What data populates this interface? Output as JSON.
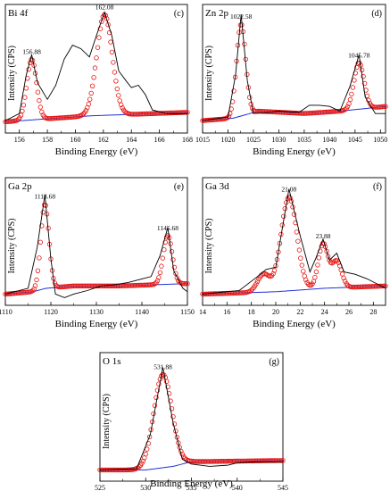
{
  "chart_data": [
    {
      "type": "line",
      "panel": "(c)",
      "element": "Bi 4f",
      "xlabel": "Binding Energy (eV)",
      "ylabel": "Intensity (CPS)",
      "xlim": [
        155,
        168
      ],
      "xticks": [
        156,
        158,
        160,
        162,
        164,
        166,
        168
      ],
      "peaks": [
        {
          "x": 156.88,
          "label": "156.88",
          "height": 0.58,
          "width": 0.35
        },
        {
          "x": 162.08,
          "label": "162.08",
          "height": 0.96,
          "width": 0.55
        }
      ],
      "baseline": [
        [
          155,
          0.05
        ],
        [
          161,
          0.1
        ],
        [
          168,
          0.13
        ]
      ],
      "experimental": [
        [
          155,
          0.06
        ],
        [
          156,
          0.12
        ],
        [
          156.5,
          0.45
        ],
        [
          156.88,
          0.62
        ],
        [
          157.3,
          0.38
        ],
        [
          158,
          0.24
        ],
        [
          158.6,
          0.36
        ],
        [
          159.2,
          0.58
        ],
        [
          159.8,
          0.7
        ],
        [
          160.4,
          0.67
        ],
        [
          161,
          0.6
        ],
        [
          161.5,
          0.78
        ],
        [
          162.08,
          0.98
        ],
        [
          162.6,
          0.78
        ],
        [
          163.1,
          0.48
        ],
        [
          163.6,
          0.4
        ],
        [
          164,
          0.34
        ],
        [
          164.5,
          0.36
        ],
        [
          165,
          0.28
        ],
        [
          165.5,
          0.15
        ],
        [
          166.5,
          0.12
        ],
        [
          168,
          0.12
        ]
      ]
    },
    {
      "type": "line",
      "panel": "(d)",
      "element": "Zn 2p",
      "xlabel": "Binding Energy (eV)",
      "ylabel": "Intensity (CPS)",
      "xlim": [
        1015,
        1051
      ],
      "xticks": [
        1015,
        1020,
        1025,
        1030,
        1035,
        1040,
        1045,
        1050
      ],
      "peaks": [
        {
          "x": 1022.58,
          "label": "1022.58",
          "height": 0.88,
          "width": 0.9
        },
        {
          "x": 1045.78,
          "label": "1045.78",
          "height": 0.55,
          "width": 1.0
        }
      ],
      "baseline": [
        [
          1015,
          0.06
        ],
        [
          1021,
          0.08
        ],
        [
          1026,
          0.14
        ],
        [
          1035,
          0.12
        ],
        [
          1042,
          0.14
        ],
        [
          1051,
          0.18
        ]
      ],
      "experimental": [
        [
          1015,
          0.06
        ],
        [
          1020,
          0.09
        ],
        [
          1021.5,
          0.45
        ],
        [
          1022.58,
          0.96
        ],
        [
          1023.8,
          0.4
        ],
        [
          1025,
          0.12
        ],
        [
          1028,
          0.13
        ],
        [
          1030,
          0.14
        ],
        [
          1034,
          0.13
        ],
        [
          1036,
          0.19
        ],
        [
          1038,
          0.19
        ],
        [
          1040,
          0.18
        ],
        [
          1042,
          0.14
        ],
        [
          1044,
          0.35
        ],
        [
          1045.78,
          0.62
        ],
        [
          1047,
          0.26
        ],
        [
          1049,
          0.12
        ],
        [
          1051,
          0.12
        ]
      ]
    },
    {
      "type": "line",
      "panel": "(e)",
      "element": "Ga 2p",
      "xlabel": "Binding Energy (eV)",
      "ylabel": "Intensity (CPS)",
      "xlim": [
        1110,
        1150
      ],
      "xticks": [
        1110,
        1120,
        1130,
        1140,
        1150
      ],
      "peaks": [
        {
          "x": 1118.68,
          "label": "1118.68",
          "height": 0.82,
          "width": 0.9
        },
        {
          "x": 1145.68,
          "label": "1145.68",
          "height": 0.55,
          "width": 1.0
        }
      ],
      "baseline": [
        [
          1110,
          0.05
        ],
        [
          1116,
          0.07
        ],
        [
          1119,
          0.1
        ],
        [
          1125,
          0.12
        ],
        [
          1135,
          0.12
        ],
        [
          1150,
          0.14
        ]
      ],
      "experimental": [
        [
          1110,
          0.05
        ],
        [
          1115,
          0.1
        ],
        [
          1117,
          0.45
        ],
        [
          1118.68,
          0.9
        ],
        [
          1120,
          0.35
        ],
        [
          1121,
          0.05
        ],
        [
          1123,
          0.02
        ],
        [
          1125,
          0.05
        ],
        [
          1128,
          0.08
        ],
        [
          1131,
          0.12
        ],
        [
          1134,
          0.13
        ],
        [
          1137,
          0.15
        ],
        [
          1140,
          0.18
        ],
        [
          1142,
          0.2
        ],
        [
          1144,
          0.38
        ],
        [
          1145.68,
          0.62
        ],
        [
          1147,
          0.25
        ],
        [
          1149,
          0.1
        ],
        [
          1150,
          0.07
        ]
      ]
    },
    {
      "type": "line",
      "panel": "(f)",
      "element": "Ga 3d",
      "xlabel": "Binding Energy (eV)",
      "ylabel": "Intensity (CPS)",
      "xlim": [
        14,
        29
      ],
      "xticks": [
        14,
        16,
        18,
        20,
        22,
        24,
        26,
        28
      ],
      "peaks": [
        {
          "x": 19.0,
          "label": "",
          "height": 0.22,
          "width": 0.5
        },
        {
          "x": 21.08,
          "label": "21.08",
          "height": 0.88,
          "width": 0.65
        },
        {
          "x": 23.88,
          "label": "23.88",
          "height": 0.48,
          "width": 0.4
        },
        {
          "x": 25.0,
          "label": "",
          "height": 0.33,
          "width": 0.4
        }
      ],
      "baseline": [
        [
          14,
          0.05
        ],
        [
          20,
          0.07
        ],
        [
          24,
          0.1
        ],
        [
          29,
          0.12
        ]
      ],
      "experimental": [
        [
          14,
          0.05
        ],
        [
          17,
          0.08
        ],
        [
          18.5,
          0.2
        ],
        [
          19.2,
          0.26
        ],
        [
          20,
          0.28
        ],
        [
          21.08,
          0.95
        ],
        [
          22,
          0.55
        ],
        [
          22.8,
          0.24
        ],
        [
          23.3,
          0.36
        ],
        [
          23.88,
          0.52
        ],
        [
          24.4,
          0.34
        ],
        [
          25,
          0.4
        ],
        [
          25.6,
          0.24
        ],
        [
          26.5,
          0.22
        ],
        [
          27.5,
          0.18
        ],
        [
          29,
          0.1
        ]
      ]
    },
    {
      "type": "line",
      "panel": "(g)",
      "element": "O 1s",
      "xlabel": "Binding Energy (eV)",
      "ylabel": "Intensity (CPS)",
      "xlim": [
        525,
        545
      ],
      "xticks": [
        525,
        530,
        535,
        540,
        545
      ],
      "peaks": [
        {
          "x": 531.88,
          "label": "531.88",
          "height": 0.86,
          "width": 1.0
        }
      ],
      "baseline": [
        [
          525,
          0.05
        ],
        [
          530,
          0.05
        ],
        [
          533,
          0.08
        ],
        [
          535,
          0.12
        ],
        [
          545,
          0.13
        ]
      ],
      "experimental": [
        [
          525,
          0.05
        ],
        [
          529,
          0.06
        ],
        [
          530.5,
          0.35
        ],
        [
          531.88,
          0.92
        ],
        [
          533,
          0.45
        ],
        [
          534,
          0.14
        ],
        [
          535,
          0.1
        ],
        [
          537,
          0.08
        ],
        [
          539,
          0.09
        ],
        [
          540,
          0.11
        ],
        [
          542,
          0.12
        ],
        [
          545,
          0.12
        ]
      ]
    }
  ],
  "colors": {
    "experimental": "#000000",
    "fit_markers": "#e8130f",
    "baseline": "#1f2fd8",
    "axes": "#000000"
  }
}
